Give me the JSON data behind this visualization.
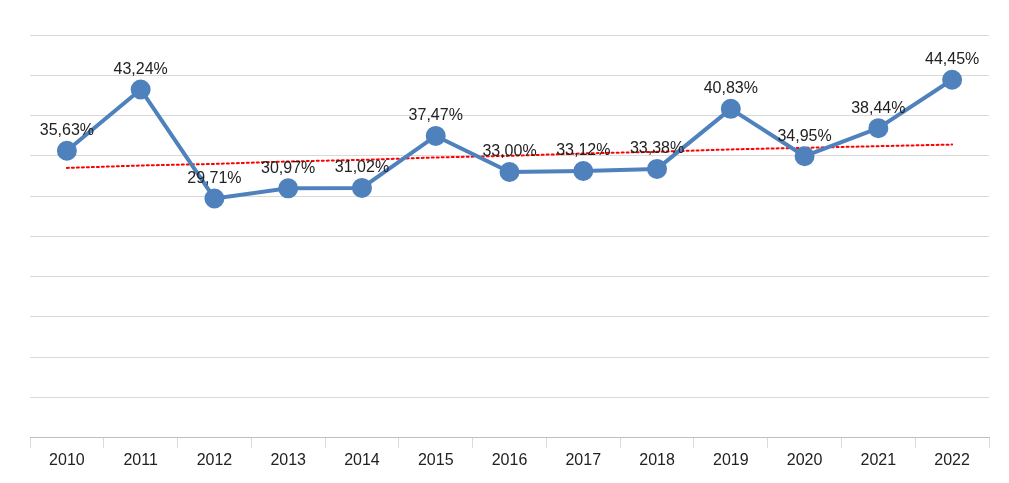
{
  "chart_data": {
    "type": "line",
    "categories": [
      "2010",
      "2011",
      "2012",
      "2013",
      "2014",
      "2015",
      "2016",
      "2017",
      "2018",
      "2019",
      "2020",
      "2021",
      "2022"
    ],
    "series": [
      {
        "color": "#4f81bd",
        "marker": "circle",
        "line_style": "solid",
        "values": [
          35.63,
          43.24,
          29.71,
          30.97,
          31.02,
          37.47,
          33.0,
          33.12,
          33.38,
          40.83,
          34.95,
          38.44,
          44.45
        ],
        "value_labels": [
          "35,63%",
          "43,24%",
          "29,71%",
          "30,97%",
          "31,02%",
          "37,47%",
          "33,00%",
          "33,12%",
          "33,38%",
          "40,83%",
          "34,95%",
          "38,44%",
          "44,45%"
        ]
      },
      {
        "type": "line",
        "color": "#ff0000",
        "marker": "none",
        "line_style": "dotted",
        "values": [
          33.5,
          33.8,
          34.0,
          34.3,
          34.5,
          34.8,
          35.0,
          35.3,
          35.5,
          35.8,
          36.0,
          36.2,
          36.4
        ]
      }
    ],
    "ylim": [
      0,
      50
    ],
    "yticks": [
      {
        "value": 0,
        "label": null
      },
      {
        "value": 5,
        "label": null
      },
      {
        "value": 10,
        "label": null
      },
      {
        "value": 15,
        "label": null
      },
      {
        "value": 20,
        "label": null
      },
      {
        "value": 25,
        "label": null
      },
      {
        "value": 30,
        "label": null
      },
      {
        "value": 35,
        "label": null
      },
      {
        "value": 40,
        "label": null
      },
      {
        "value": 45,
        "label": null
      },
      {
        "value": 50,
        "label": null
      }
    ],
    "grid": "y",
    "tick_labels": "x"
  }
}
